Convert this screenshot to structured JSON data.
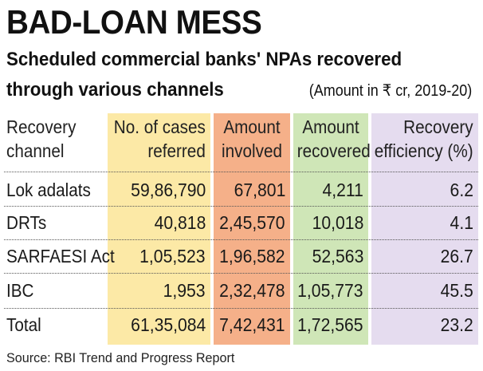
{
  "title": "BAD-LOAN MESS",
  "subtitle_line1": "Scheduled commercial banks' NPAs recovered",
  "subtitle_line2": "through various channels",
  "unit_note": "(Amount in ₹ cr, 2019-20)",
  "source": "Source: RBI Trend and Progress Report",
  "colors": {
    "cases_column": "#fce9a6",
    "involved_column": "#f5b089",
    "recovered_column": "#cfe6b7",
    "efficiency_column": "#e5dcef"
  },
  "chart_data": {
    "type": "table",
    "title": "BAD-LOAN MESS",
    "subtitle": "Scheduled commercial banks' NPAs recovered through various channels",
    "unit": "(Amount in ₹ cr, 2019-20)",
    "headers": [
      [
        "Recovery",
        "channel"
      ],
      [
        "No. of cases",
        "referred"
      ],
      [
        "Amount",
        "involved"
      ],
      [
        "Amount",
        "recovered"
      ],
      [
        "Recovery",
        "efficiency (%)"
      ]
    ],
    "rows": [
      [
        "Lok adalats",
        "59,86,790",
        "67,801",
        "4,211",
        "6.2"
      ],
      [
        "DRTs",
        "40,818",
        "2,45,570",
        "10,018",
        "4.1"
      ],
      [
        "SARFAESI Act",
        "1,05,523",
        "1,96,582",
        "52,563",
        "26.7"
      ],
      [
        "IBC",
        "1,953",
        "2,32,478",
        "1,05,773",
        "45.5"
      ],
      [
        "Total",
        "61,35,084",
        "7,42,431",
        "1,72,565",
        "23.2"
      ]
    ]
  }
}
